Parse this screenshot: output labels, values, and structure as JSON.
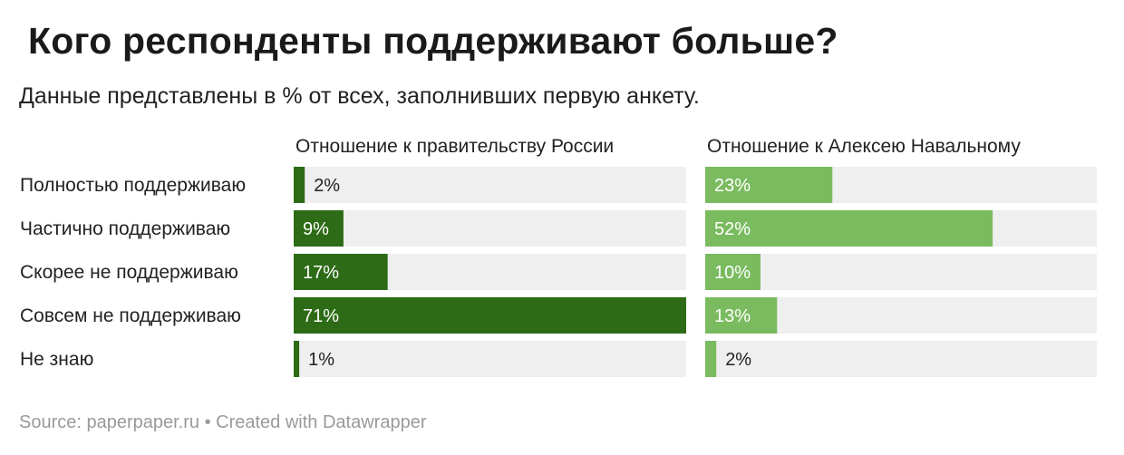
{
  "title": "Кого респонденты поддерживают больше?",
  "subtitle": "Данные представлены в % от всех, заполнивших первую анкету.",
  "footer": "Source: paperpaper.ru • Created with Datawrapper",
  "colors": {
    "dark_green": "#2d6b16",
    "light_green": "#7abb5f",
    "track": "#efefef"
  },
  "chart_data": {
    "type": "bar",
    "orientation": "horizontal",
    "categories": [
      "Полностью поддерживаю",
      "Частично поддерживаю",
      "Скорее не поддерживаю",
      "Совсем не поддерживаю",
      "Не знаю"
    ],
    "value_suffix": "%",
    "xlim": [
      0,
      71
    ],
    "series": [
      {
        "name": "Отношение к правительству России",
        "color": "#2d6b16",
        "values": [
          2,
          9,
          17,
          71,
          1
        ]
      },
      {
        "name": "Отношение к Алексею Навальному",
        "color": "#7abb5f",
        "values": [
          23,
          52,
          10,
          13,
          2
        ]
      }
    ]
  }
}
